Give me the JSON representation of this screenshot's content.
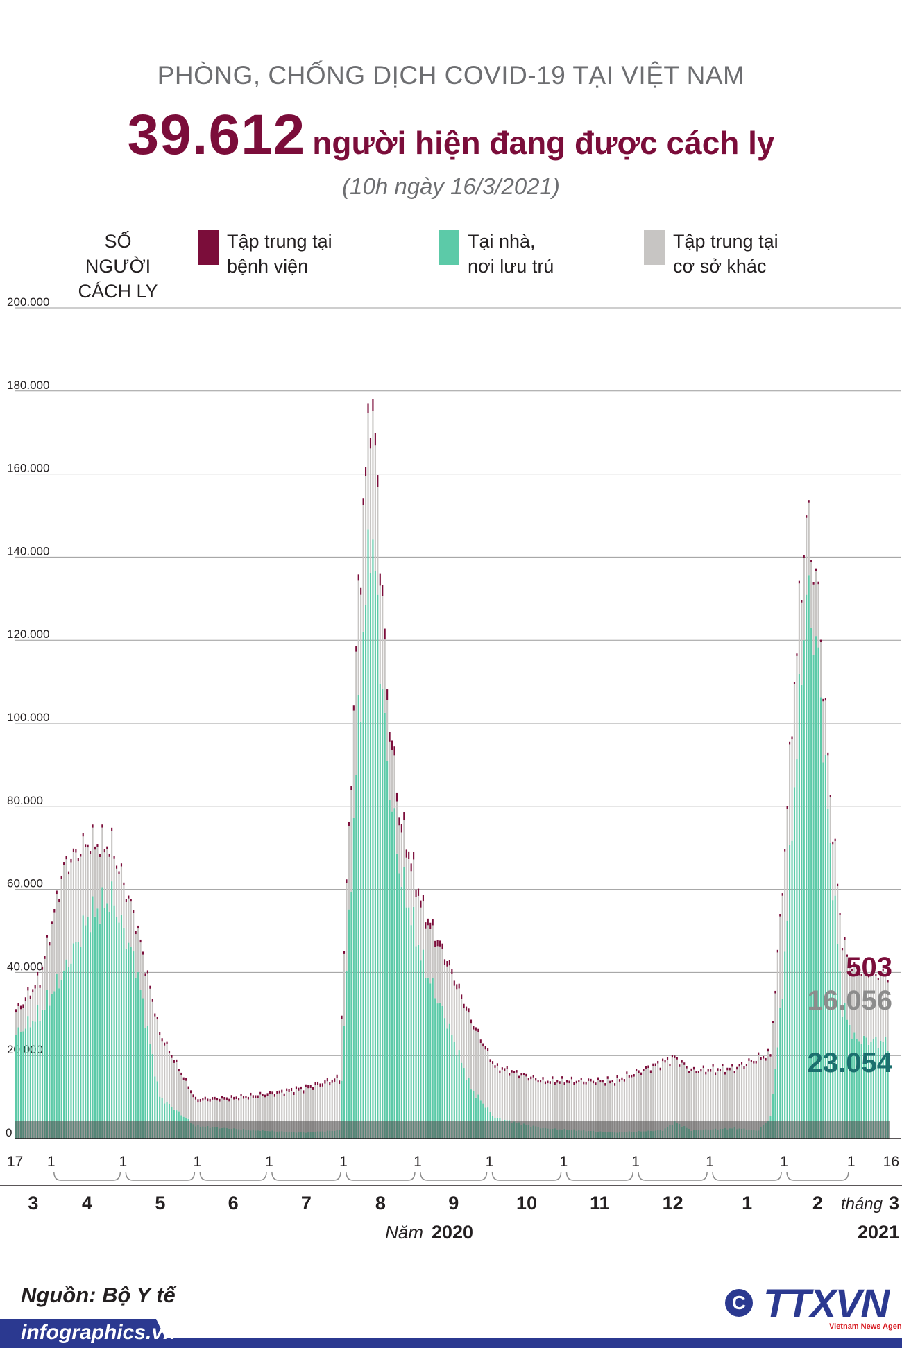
{
  "header": {
    "supertitle": "PHÒNG, CHỐNG DỊCH COVID-19 TẠI VIỆT NAM",
    "headline_number": "39.612",
    "headline_text": "người hiện đang được cách ly",
    "dateline": "(10h ngày 16/3/2021)"
  },
  "legend": {
    "ylabel_line1": "SỐ NGƯỜI",
    "ylabel_line2": "CÁCH LY",
    "items": [
      {
        "line1": "Tập trung tại",
        "line2": "bệnh viện",
        "color": "#7b0d3a"
      },
      {
        "line1": "Tại nhà,",
        "line2": "nơi lưu trú",
        "color": "#5ccaa8"
      },
      {
        "line1": "Tập trung tại",
        "line2": "cơ sở khác",
        "color": "#c7c5c3"
      }
    ]
  },
  "chart_data": {
    "type": "bar",
    "stacked": true,
    "title": "39.612 người hiện đang được cách ly",
    "ylabel": "SỐ NGƯỜI CÁCH LY",
    "ylim": [
      0,
      200000
    ],
    "yticks": [
      "0",
      "20.000",
      "40.000",
      "60.000",
      "80.000",
      "100.000",
      "120.000",
      "140.000",
      "160.000",
      "180.000",
      "200.000"
    ],
    "x_range": "17/3/2020 - 16/3/2021",
    "series": [
      {
        "name": "Tại nhà, nơi lưu trú",
        "color": "#5ccaa8",
        "keyframes": [
          [
            0,
            25000
          ],
          [
            10,
            30000
          ],
          [
            20,
            40000
          ],
          [
            30,
            53000
          ],
          [
            40,
            58000
          ],
          [
            50,
            42000
          ],
          [
            60,
            10000
          ],
          [
            75,
            3000
          ],
          [
            100,
            2000
          ],
          [
            120,
            1500
          ],
          [
            135,
            2000
          ],
          [
            138,
            40000
          ],
          [
            143,
            100000
          ],
          [
            148,
            148000
          ],
          [
            150,
            135000
          ],
          [
            155,
            90000
          ],
          [
            160,
            65000
          ],
          [
            170,
            42000
          ],
          [
            180,
            28000
          ],
          [
            190,
            12000
          ],
          [
            200,
            5000
          ],
          [
            220,
            2500
          ],
          [
            250,
            1500
          ],
          [
            270,
            2000
          ],
          [
            275,
            4000
          ],
          [
            282,
            2000
          ],
          [
            300,
            2500
          ],
          [
            310,
            2000
          ],
          [
            315,
            5000
          ],
          [
            320,
            35000
          ],
          [
            325,
            85000
          ],
          [
            330,
            132000
          ],
          [
            335,
            115000
          ],
          [
            340,
            70000
          ],
          [
            345,
            32000
          ],
          [
            350,
            24000
          ],
          [
            364,
            23054
          ]
        ]
      },
      {
        "name": "Tập trung tại cơ sở khác",
        "color": "#c7c5c3",
        "keyframes": [
          [
            0,
            5000
          ],
          [
            10,
            8000
          ],
          [
            20,
            25000
          ],
          [
            30,
            18000
          ],
          [
            40,
            12000
          ],
          [
            50,
            10000
          ],
          [
            60,
            15000
          ],
          [
            75,
            6000
          ],
          [
            90,
            7000
          ],
          [
            110,
            9000
          ],
          [
            135,
            12000
          ],
          [
            138,
            20000
          ],
          [
            143,
            30000
          ],
          [
            148,
            30000
          ],
          [
            150,
            30000
          ],
          [
            155,
            15000
          ],
          [
            160,
            12000
          ],
          [
            170,
            12000
          ],
          [
            180,
            14000
          ],
          [
            190,
            16000
          ],
          [
            200,
            12000
          ],
          [
            220,
            11000
          ],
          [
            250,
            12000
          ],
          [
            270,
            16000
          ],
          [
            282,
            14000
          ],
          [
            300,
            14000
          ],
          [
            310,
            17000
          ],
          [
            315,
            15000
          ],
          [
            320,
            25000
          ],
          [
            325,
            25000
          ],
          [
            330,
            18000
          ],
          [
            335,
            15000
          ],
          [
            340,
            12000
          ],
          [
            345,
            15000
          ],
          [
            350,
            16000
          ],
          [
            364,
            16056
          ]
        ]
      },
      {
        "name": "Tập trung tại bệnh viện",
        "color": "#7b0d3a",
        "keyframes": [
          [
            0,
            800
          ],
          [
            100,
            600
          ],
          [
            138,
            800
          ],
          [
            145,
            1800
          ],
          [
            150,
            3000
          ],
          [
            160,
            2000
          ],
          [
            200,
            600
          ],
          [
            330,
            600
          ],
          [
            364,
            503
          ]
        ]
      }
    ],
    "end_labels": [
      {
        "text": "503",
        "series": "Tập trung tại bệnh viện",
        "color": "#7b0d3a"
      },
      {
        "text": "16.056",
        "series": "Tập trung tại cơ sở khác",
        "color": "#8c8c8c"
      },
      {
        "text": "23.054",
        "series": "Tại nhà, nơi lưu trú",
        "color": "#1b6f6e"
      }
    ],
    "day_ticks": [
      "17",
      "1",
      "1",
      "1",
      "1",
      "1",
      "1",
      "1",
      "1",
      "1",
      "1",
      "1",
      "1",
      "16"
    ],
    "day_tick_index": [
      0,
      15,
      45,
      76,
      106,
      137,
      168,
      198,
      229,
      259,
      290,
      321,
      349,
      364
    ],
    "months": [
      {
        "label": "3",
        "start": 0,
        "end": 15
      },
      {
        "label": "4",
        "start": 15,
        "end": 45
      },
      {
        "label": "5",
        "start": 45,
        "end": 76
      },
      {
        "label": "6",
        "start": 76,
        "end": 106
      },
      {
        "label": "7",
        "start": 106,
        "end": 137
      },
      {
        "label": "8",
        "start": 137,
        "end": 168
      },
      {
        "label": "9",
        "start": 168,
        "end": 198
      },
      {
        "label": "10",
        "start": 198,
        "end": 229
      },
      {
        "label": "11",
        "start": 229,
        "end": 259
      },
      {
        "label": "12",
        "start": 259,
        "end": 290
      },
      {
        "label": "1",
        "start": 290,
        "end": 321
      },
      {
        "label": "2",
        "start": 321,
        "end": 349
      },
      {
        "label": "3",
        "start": 349,
        "end": 365
      }
    ],
    "month_prefix": "tháng",
    "year_prefix": "Năm",
    "year_2020": "2020",
    "year_2021": "2021"
  },
  "footer": {
    "source_label": "Nguồn:",
    "source_value": "Bộ Y tế",
    "site": "infographics.vn",
    "copyright_symbol": "C",
    "logo": "TTXVN",
    "logo_sub": "Vietnam News Agency"
  }
}
